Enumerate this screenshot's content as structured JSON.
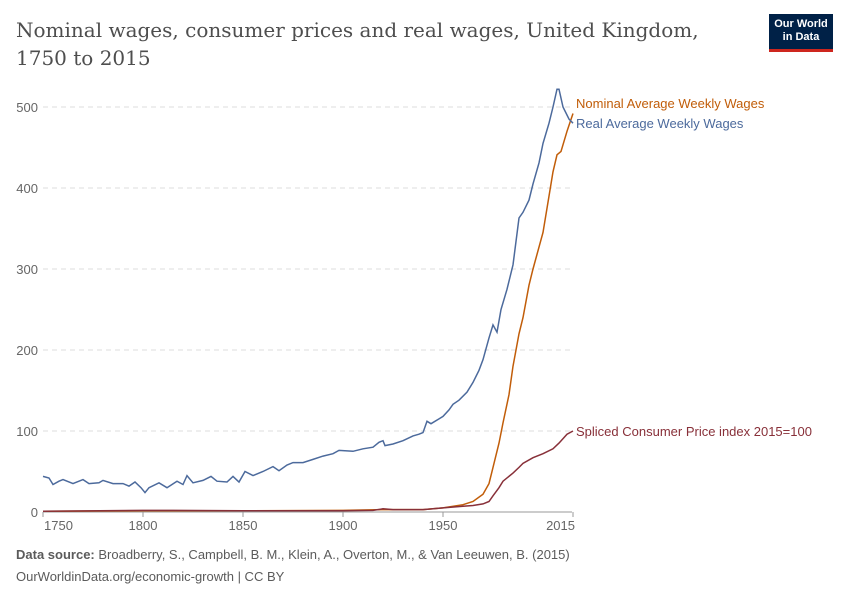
{
  "header": {
    "title": "Nominal wages, consumer prices and real wages, United Kingdom, 1750 to 2015",
    "logo_line1": "Our World",
    "logo_line2": "in Data"
  },
  "footer": {
    "source_label": "Data source:",
    "source_text": " Broadberry, S., Campbell, B. M., Klein, A., Overton, M., & Van Leeuwen, B. (2015)",
    "license": "OurWorldinData.org/economic-growth | CC BY"
  },
  "chart_data": {
    "type": "line",
    "title": "Nominal wages, consumer prices and real wages, United Kingdom, 1750 to 2015",
    "xlim": [
      1750,
      2015
    ],
    "ylim": [
      0,
      520
    ],
    "x_ticks": [
      "1750",
      "1800",
      "1850",
      "1900",
      "1950",
      "2015"
    ],
    "y_ticks": [
      "0",
      "100",
      "200",
      "300",
      "400",
      "500"
    ],
    "grid": "horizontal dashed",
    "legend": "right end labels",
    "series": [
      {
        "name": "Nominal Average Weekly Wages",
        "color": "#c15d09",
        "points": [
          [
            1750,
            1
          ],
          [
            1800,
            1.5
          ],
          [
            1850,
            1.5
          ],
          [
            1900,
            2
          ],
          [
            1920,
            3
          ],
          [
            1940,
            3
          ],
          [
            1950,
            5
          ],
          [
            1960,
            9
          ],
          [
            1965,
            13
          ],
          [
            1970,
            22
          ],
          [
            1973,
            35
          ],
          [
            1975,
            55
          ],
          [
            1978,
            85
          ],
          [
            1980,
            110
          ],
          [
            1983,
            145
          ],
          [
            1985,
            180
          ],
          [
            1988,
            220
          ],
          [
            1990,
            240
          ],
          [
            1993,
            280
          ],
          [
            1995,
            300
          ],
          [
            2000,
            345
          ],
          [
            2003,
            390
          ],
          [
            2005,
            420
          ],
          [
            2007,
            441
          ],
          [
            2009,
            445
          ],
          [
            2012,
            470
          ],
          [
            2015,
            492
          ]
        ]
      },
      {
        "name": "Real Average Weekly Wages",
        "color": "#4c6a9c",
        "points": [
          [
            1750,
            44
          ],
          [
            1753,
            42
          ],
          [
            1755,
            34
          ],
          [
            1758,
            38
          ],
          [
            1760,
            40
          ],
          [
            1765,
            35
          ],
          [
            1770,
            40
          ],
          [
            1773,
            35
          ],
          [
            1778,
            36
          ],
          [
            1780,
            39
          ],
          [
            1785,
            35
          ],
          [
            1790,
            35
          ],
          [
            1793,
            32
          ],
          [
            1796,
            37
          ],
          [
            1799,
            30
          ],
          [
            1801,
            24
          ],
          [
            1803,
            30
          ],
          [
            1808,
            36
          ],
          [
            1812,
            30
          ],
          [
            1817,
            38
          ],
          [
            1820,
            34
          ],
          [
            1822,
            45
          ],
          [
            1825,
            36
          ],
          [
            1830,
            39
          ],
          [
            1834,
            44
          ],
          [
            1837,
            38
          ],
          [
            1842,
            37
          ],
          [
            1845,
            44
          ],
          [
            1848,
            37
          ],
          [
            1851,
            50
          ],
          [
            1855,
            45
          ],
          [
            1860,
            50
          ],
          [
            1865,
            56
          ],
          [
            1868,
            51
          ],
          [
            1872,
            58
          ],
          [
            1875,
            61
          ],
          [
            1880,
            61
          ],
          [
            1885,
            65
          ],
          [
            1890,
            69
          ],
          [
            1895,
            72
          ],
          [
            1898,
            76
          ],
          [
            1905,
            75
          ],
          [
            1910,
            78
          ],
          [
            1915,
            80
          ],
          [
            1918,
            86
          ],
          [
            1920,
            88
          ],
          [
            1921,
            82
          ],
          [
            1925,
            84
          ],
          [
            1930,
            88
          ],
          [
            1935,
            94
          ],
          [
            1938,
            96
          ],
          [
            1940,
            98
          ],
          [
            1942,
            112
          ],
          [
            1944,
            109
          ],
          [
            1948,
            115
          ],
          [
            1950,
            118
          ],
          [
            1953,
            126
          ],
          [
            1955,
            133
          ],
          [
            1958,
            138
          ],
          [
            1962,
            148
          ],
          [
            1965,
            160
          ],
          [
            1968,
            175
          ],
          [
            1970,
            188
          ],
          [
            1973,
            215
          ],
          [
            1975,
            231
          ],
          [
            1977,
            222
          ],
          [
            1979,
            250
          ],
          [
            1982,
            275
          ],
          [
            1985,
            305
          ],
          [
            1988,
            363
          ],
          [
            1990,
            370
          ],
          [
            1993,
            385
          ],
          [
            1995,
            405
          ],
          [
            1998,
            431
          ],
          [
            2000,
            455
          ],
          [
            2003,
            480
          ],
          [
            2005,
            500
          ],
          [
            2007,
            522
          ],
          [
            2008,
            522
          ],
          [
            2010,
            500
          ],
          [
            2013,
            485
          ],
          [
            2015,
            480
          ]
        ]
      },
      {
        "name": "Spliced Consumer Price index 2015=100",
        "color": "#883039",
        "points": [
          [
            1750,
            1
          ],
          [
            1800,
            2
          ],
          [
            1815,
            2
          ],
          [
            1850,
            1.5
          ],
          [
            1900,
            1.5
          ],
          [
            1915,
            2
          ],
          [
            1920,
            4
          ],
          [
            1925,
            3
          ],
          [
            1940,
            3
          ],
          [
            1950,
            5
          ],
          [
            1960,
            7
          ],
          [
            1965,
            8
          ],
          [
            1970,
            10
          ],
          [
            1973,
            13
          ],
          [
            1975,
            20
          ],
          [
            1978,
            30
          ],
          [
            1980,
            38
          ],
          [
            1985,
            48
          ],
          [
            1988,
            55
          ],
          [
            1990,
            60
          ],
          [
            1995,
            67
          ],
          [
            2000,
            72
          ],
          [
            2005,
            78
          ],
          [
            2008,
            85
          ],
          [
            2012,
            96
          ],
          [
            2015,
            100
          ]
        ]
      }
    ]
  }
}
